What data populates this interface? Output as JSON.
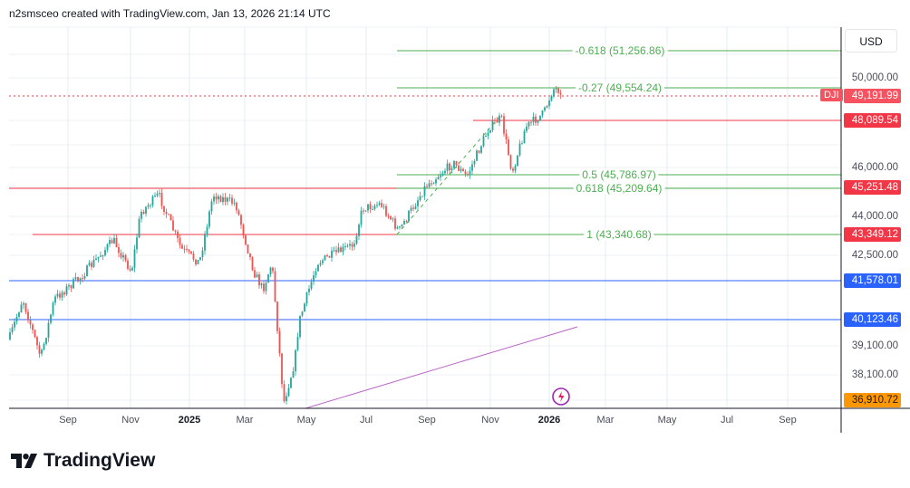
{
  "header": {
    "text": "n2smsceo created with TradingView.com, Jan 13, 2026 21:14 UTC"
  },
  "symbol": "DJI",
  "currency": "USD",
  "price_axis": {
    "ticks": [
      "50,000.00",
      "46,000.00",
      "44,000.00",
      "42,500.00",
      "39,100.00",
      "38,100.00"
    ],
    "badges": [
      {
        "label": "49,191.99",
        "color": "#f7525f"
      },
      {
        "label": "48,089.54",
        "color": "#f23645"
      },
      {
        "label": "45,251.48",
        "color": "#f23645"
      },
      {
        "label": "43,349.12",
        "color": "#f23645"
      },
      {
        "label": "41,578.01",
        "color": "#2962ff"
      },
      {
        "label": "40,123.46",
        "color": "#2962ff"
      },
      {
        "label": "36,910.72",
        "color": "#ff9800"
      }
    ]
  },
  "time_axis": [
    {
      "label": "Sep",
      "bold": false
    },
    {
      "label": "Nov",
      "bold": false
    },
    {
      "label": "2025",
      "bold": true
    },
    {
      "label": "Mar",
      "bold": false
    },
    {
      "label": "May",
      "bold": false
    },
    {
      "label": "Jul",
      "bold": false
    },
    {
      "label": "Sep",
      "bold": false
    },
    {
      "label": "Nov",
      "bold": false
    },
    {
      "label": "2026",
      "bold": true
    },
    {
      "label": "Mar",
      "bold": false
    },
    {
      "label": "May",
      "bold": false
    },
    {
      "label": "Jul",
      "bold": false
    },
    {
      "label": "Sep",
      "bold": false
    }
  ],
  "fib_levels": [
    {
      "label": "-0.618 (51,256.86)"
    },
    {
      "label": "-0.27 (49,554.24)"
    },
    {
      "label": "0.5 (45,786.97)"
    },
    {
      "label": "0.618 (45,209.64)"
    },
    {
      "label": "1 (43,340.68)"
    }
  ],
  "colors": {
    "up": "#26a69a",
    "down": "#ef5350",
    "fib": "#4caf50",
    "support": "#2962ff",
    "resistance": "#f23645",
    "trendline": "#ba68c8"
  },
  "footer": {
    "brand": "TradingView"
  }
}
